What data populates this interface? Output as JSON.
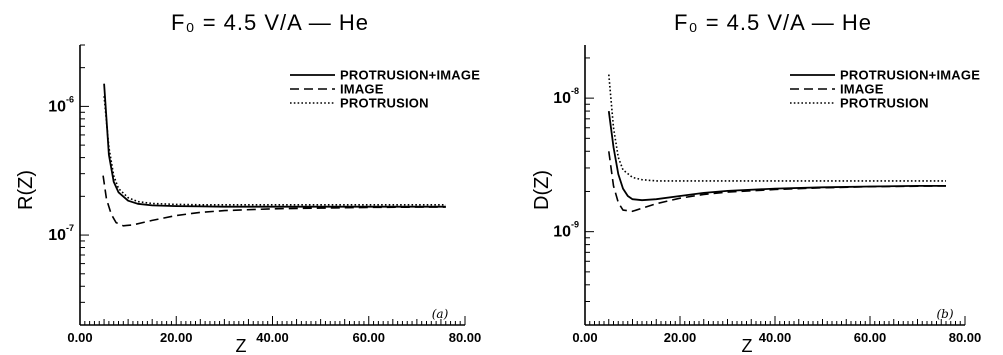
{
  "chart_data": [
    {
      "type": "line",
      "title": "F₀ = 4.5 V/A — He",
      "xlabel": "Z",
      "ylabel": "R(Z)",
      "panel_label": "(a)",
      "xlim": [
        0,
        80
      ],
      "x_ticks": [
        "0.00",
        "20.00",
        "40.00",
        "60.00",
        "80.00"
      ],
      "yscale": "log",
      "ylim": [
        2e-08,
        3e-06
      ],
      "y_ticks": [
        {
          "value": 1e-06,
          "label": "10",
          "exp": "-6"
        },
        {
          "value": 1e-07,
          "label": "10",
          "exp": "-7"
        }
      ],
      "legend_position": "top-right",
      "series": [
        {
          "name": "PROTRUSION+IMAGE",
          "style": "solid",
          "x": [
            5,
            6,
            7,
            8,
            10,
            12,
            15,
            20,
            25,
            30,
            40,
            50,
            60,
            70,
            76
          ],
          "y": [
            1.5e-06,
            4.2e-07,
            2.6e-07,
            2.15e-07,
            1.85e-07,
            1.75e-07,
            1.7e-07,
            1.68e-07,
            1.67e-07,
            1.66e-07,
            1.66e-07,
            1.66e-07,
            1.66e-07,
            1.66e-07,
            1.66e-07
          ]
        },
        {
          "name": "IMAGE",
          "style": "dashed",
          "x": [
            4.8,
            5.5,
            6.5,
            7.5,
            9,
            11,
            13,
            15,
            20,
            25,
            30,
            40,
            50,
            60,
            70,
            76
          ],
          "y": [
            2.9e-07,
            1.9e-07,
            1.45e-07,
            1.25e-07,
            1.18e-07,
            1.2e-07,
            1.25e-07,
            1.3e-07,
            1.42e-07,
            1.5e-07,
            1.55e-07,
            1.6e-07,
            1.62e-07,
            1.64e-07,
            1.65e-07,
            1.65e-07
          ]
        },
        {
          "name": "PROTRUSION",
          "style": "dotted",
          "x": [
            5,
            6,
            7,
            8,
            10,
            12,
            15,
            20,
            25,
            30,
            40,
            50,
            60,
            70,
            76
          ],
          "y": [
            1.2e-06,
            4.8e-07,
            2.9e-07,
            2.3e-07,
            1.95e-07,
            1.82e-07,
            1.76e-07,
            1.73e-07,
            1.72e-07,
            1.72e-07,
            1.72e-07,
            1.72e-07,
            1.72e-07,
            1.72e-07,
            1.72e-07
          ]
        }
      ]
    },
    {
      "type": "line",
      "title": "F₀ = 4.5 V/A — He",
      "xlabel": "Z",
      "ylabel": "D(Z)",
      "panel_label": "(b)",
      "xlim": [
        0,
        80
      ],
      "x_ticks": [
        "0.00",
        "20.00",
        "40.00",
        "60.00",
        "80.00"
      ],
      "yscale": "log",
      "ylim": [
        2e-10,
        2.5e-08
      ],
      "y_ticks": [
        {
          "value": 1e-08,
          "label": "10",
          "exp": "-8"
        },
        {
          "value": 1e-09,
          "label": "10",
          "exp": "-9"
        }
      ],
      "legend_position": "top-right",
      "series": [
        {
          "name": "PROTRUSION+IMAGE",
          "style": "solid",
          "x": [
            5,
            6,
            7,
            8,
            9,
            10,
            12,
            15,
            20,
            25,
            30,
            40,
            50,
            60,
            70,
            76
          ],
          "y": [
            8e-09,
            4.3e-09,
            2.7e-09,
            2.1e-09,
            1.85e-09,
            1.75e-09,
            1.72e-09,
            1.75e-09,
            1.85e-09,
            1.95e-09,
            2.02e-09,
            2.1e-09,
            2.15e-09,
            2.18e-09,
            2.2e-09,
            2.2e-09
          ]
        },
        {
          "name": "IMAGE",
          "style": "dashed",
          "x": [
            5,
            6,
            7,
            8,
            10,
            12,
            15,
            20,
            25,
            30,
            40,
            50,
            60,
            70,
            76
          ],
          "y": [
            4e-09,
            2.2e-09,
            1.65e-09,
            1.45e-09,
            1.42e-09,
            1.5e-09,
            1.62e-09,
            1.78e-09,
            1.9e-09,
            1.98e-09,
            2.07e-09,
            2.13e-09,
            2.17e-09,
            2.19e-09,
            2.2e-09
          ]
        },
        {
          "name": "PROTRUSION",
          "style": "dotted",
          "x": [
            5,
            6,
            7,
            8,
            10,
            12,
            15,
            20,
            25,
            30,
            40,
            50,
            60,
            70,
            76
          ],
          "y": [
            1.5e-08,
            6e-09,
            3.6e-09,
            2.9e-09,
            2.55e-09,
            2.45e-09,
            2.4e-09,
            2.4e-09,
            2.4e-09,
            2.4e-09,
            2.4e-09,
            2.4e-09,
            2.4e-09,
            2.4e-09,
            2.4e-09
          ]
        }
      ]
    }
  ]
}
